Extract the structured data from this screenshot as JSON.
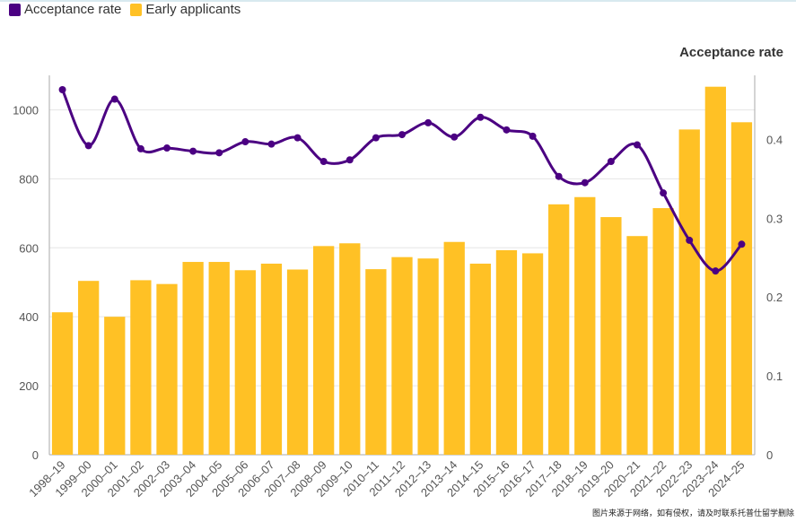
{
  "legend": {
    "items": [
      {
        "label": "Acceptance rate",
        "color": "#4b0082"
      },
      {
        "label": "Early applicants",
        "color": "#ffc125"
      }
    ]
  },
  "right_axis_title": "Acceptance rate",
  "watermark": "图片来源于网络，如有侵权，请及时联系托普仕留学删除",
  "colors": {
    "bar": "#ffc125",
    "line": "#4b0082",
    "grid": "#e6e6e6",
    "axis": "#aaaaaa"
  },
  "chart_data": {
    "type": "bar",
    "categories": [
      "1998–19",
      "1999–00",
      "2000–01",
      "2001–02",
      "2002–03",
      "2003–04",
      "2004–05",
      "2005–06",
      "2006–07",
      "2007–08",
      "2008–09",
      "2009–10",
      "2010–11",
      "2011–12",
      "2012–13",
      "2013–14",
      "2014–15",
      "2015–16",
      "2016–17",
      "2017–18",
      "2018–19",
      "2019–20",
      "2020–21",
      "2021–22",
      "2022–23",
      "2023–24",
      "2024–25"
    ],
    "series": [
      {
        "name": "Early applicants",
        "type": "bar",
        "axis": "left",
        "values": [
          413,
          504,
          400,
          506,
          495,
          559,
          559,
          535,
          554,
          537,
          605,
          613,
          538,
          573,
          569,
          617,
          554,
          593,
          584,
          726,
          747,
          689,
          634,
          715,
          943,
          1067,
          964
        ]
      },
      {
        "name": "Acceptance rate",
        "type": "line",
        "axis": "right",
        "values": [
          0.463,
          0.392,
          0.451,
          0.388,
          0.389,
          0.385,
          0.383,
          0.397,
          0.394,
          0.402,
          0.372,
          0.374,
          0.402,
          0.406,
          0.421,
          0.403,
          0.428,
          0.412,
          0.404,
          0.353,
          0.345,
          0.372,
          0.393,
          0.332,
          0.272,
          0.233,
          0.267
        ]
      }
    ],
    "left_axis": {
      "ylim": [
        0,
        1100
      ],
      "ticks": [
        0,
        200,
        400,
        600,
        800,
        1000
      ]
    },
    "right_axis": {
      "title": "Acceptance rate",
      "ylim": [
        0,
        0.4812
      ],
      "ticks": [
        "0",
        "0.1",
        "0.2",
        "0.3",
        "0.4"
      ]
    },
    "grid": true,
    "legend_position": "top-left"
  }
}
